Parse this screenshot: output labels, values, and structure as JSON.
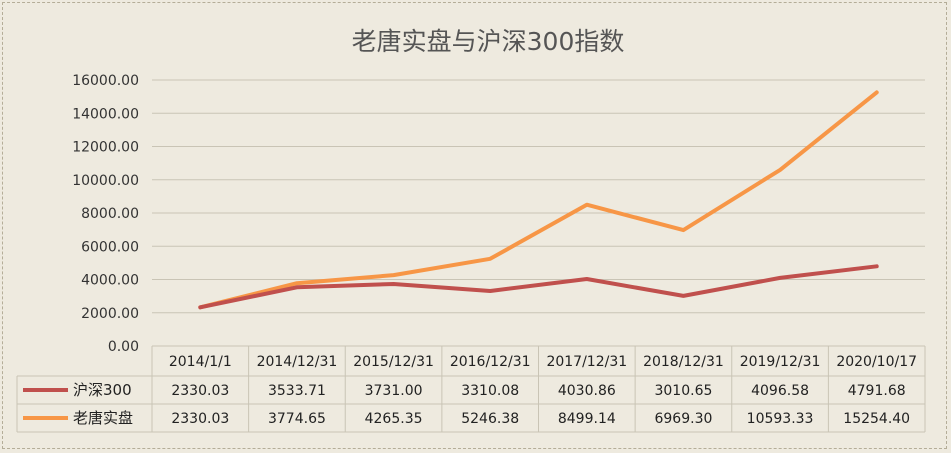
{
  "chart_data": {
    "type": "line",
    "title": "老唐实盘与沪深300指数",
    "categories": [
      "2014/1/1",
      "2014/12/31",
      "2015/12/31",
      "2016/12/31",
      "2017/12/31",
      "2018/12/31",
      "2019/12/31",
      "2020/10/17"
    ],
    "series": [
      {
        "name": "沪深300",
        "color": "#c0504d",
        "values": [
          2330.03,
          3533.71,
          3731.0,
          3310.08,
          4030.86,
          3010.65,
          4096.58,
          4791.68
        ],
        "labels": [
          "2330.03",
          "3533.71",
          "3731.00",
          "3310.08",
          "4030.86",
          "3010.65",
          "4096.58",
          "4791.68"
        ]
      },
      {
        "name": "老唐实盘",
        "color": "#f79646",
        "values": [
          2330.03,
          3774.65,
          4265.35,
          5246.38,
          8499.14,
          6969.3,
          10593.33,
          15254.4
        ],
        "labels": [
          "2330.03",
          "3774.65",
          "4265.35",
          "5246.38",
          "8499.14",
          "6969.30",
          "10593.33",
          "15254.40"
        ]
      }
    ],
    "ylim": [
      0,
      16000
    ],
    "yticks": [
      "0.00",
      "2000.00",
      "4000.00",
      "6000.00",
      "8000.00",
      "10000.00",
      "12000.00",
      "14000.00",
      "16000.00"
    ],
    "grid": true,
    "legend": "data-table"
  }
}
